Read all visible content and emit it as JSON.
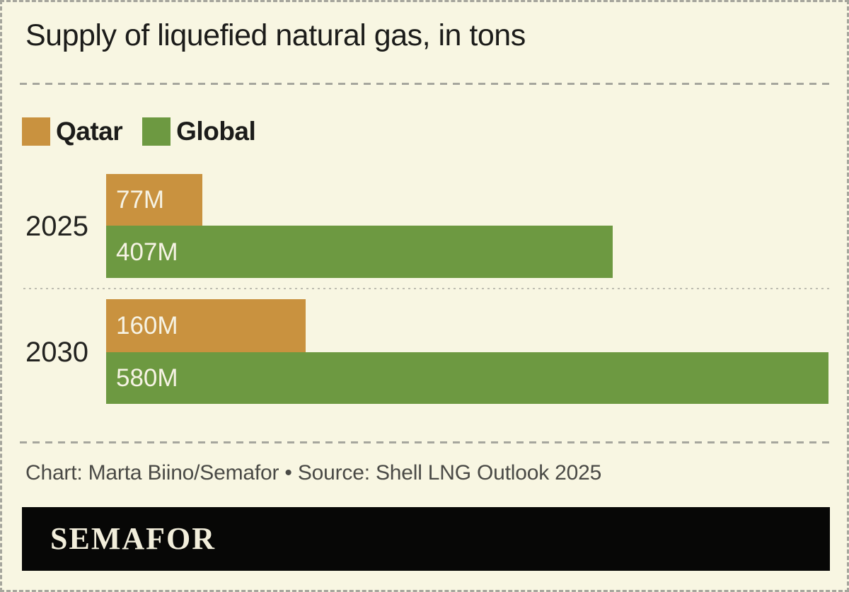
{
  "title": "Supply of liquefied natural gas, in tons",
  "legend": {
    "items": [
      {
        "label": "Qatar",
        "color": "#c9923f"
      },
      {
        "label": "Global",
        "color": "#6d9941"
      }
    ]
  },
  "chart_data": {
    "type": "bar",
    "orientation": "horizontal",
    "title": "Supply of liquefied natural gas, in tons",
    "unit": "tons",
    "categories": [
      "2025",
      "2030"
    ],
    "series": [
      {
        "name": "Qatar",
        "color": "#c9923f",
        "values": [
          77,
          160
        ],
        "labels": [
          "77M",
          "160M"
        ]
      },
      {
        "name": "Global",
        "color": "#6d9941",
        "values": [
          407,
          580
        ],
        "labels": [
          "407M",
          "580M"
        ]
      }
    ],
    "xlabel": "",
    "ylabel": "",
    "xlim": [
      0,
      580
    ],
    "grid": false,
    "legend_position": "top-left",
    "value_labels_inside_bars": true
  },
  "footer": {
    "credit": "Chart: Marta Biino/Semafor • Source: Shell LNG Outlook 2025"
  },
  "brand": {
    "logo_text": "SEMAFOR",
    "bar_color": "#070706",
    "text_color": "#f2eedb"
  },
  "colors": {
    "background": "#f8f6e2",
    "qatar": "#c9923f",
    "global": "#6d9941",
    "bar_label": "#f6f3e4",
    "ink": "#1c1c1a",
    "muted": "#4a4a46",
    "dash": "#a6a69d"
  }
}
